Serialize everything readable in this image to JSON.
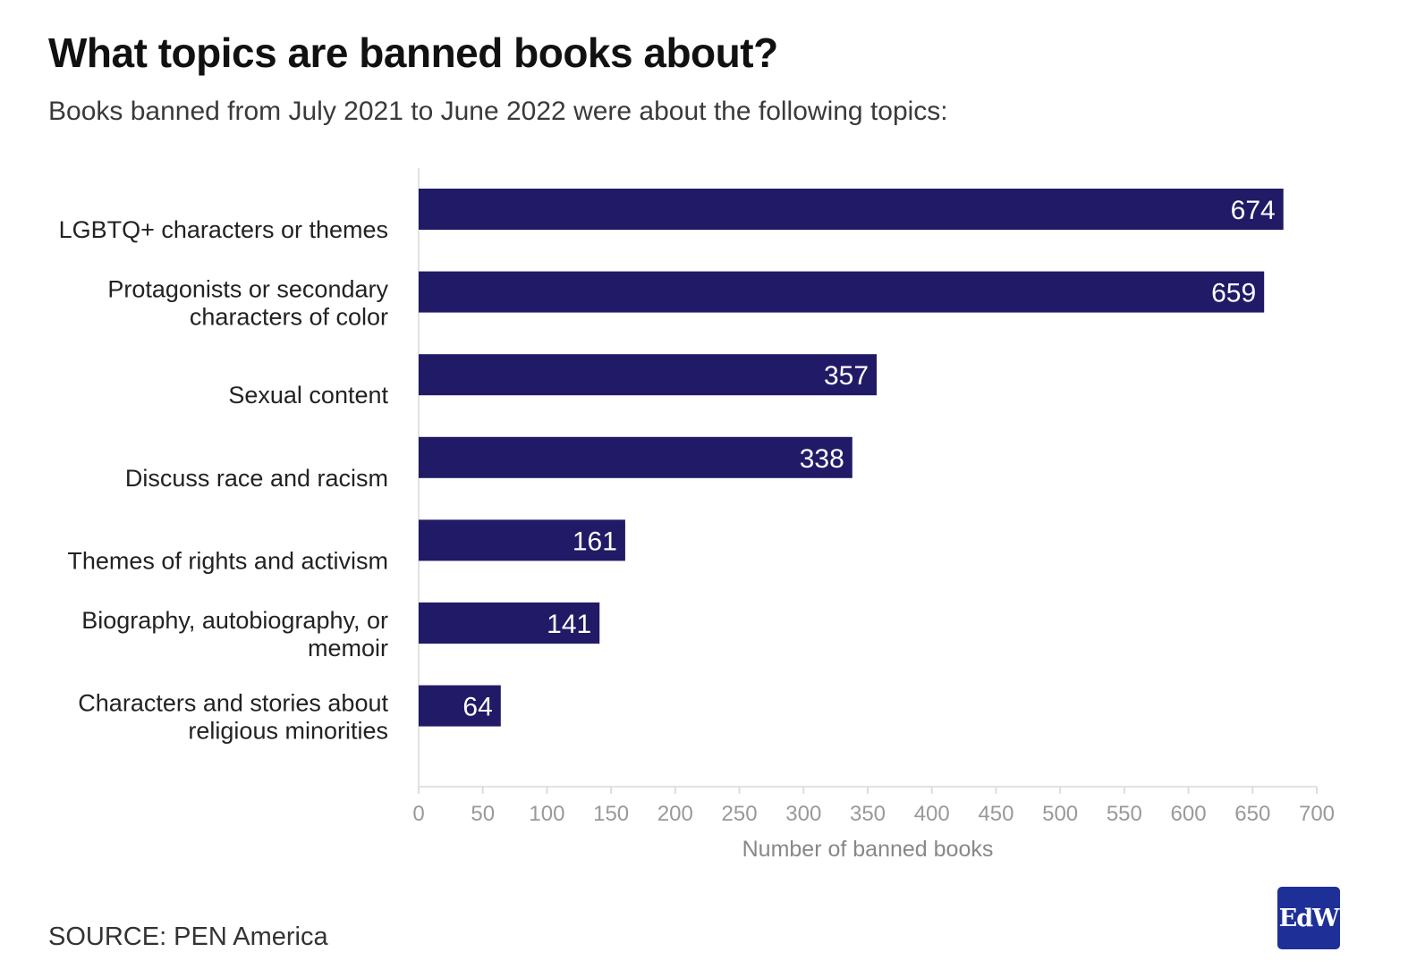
{
  "header": {
    "title": "What topics are banned books about?",
    "subtitle": "Books banned from July 2021 to June 2022 were about the following topics:"
  },
  "footer": {
    "source": "SOURCE: PEN America",
    "logo_text": "EdW"
  },
  "colors": {
    "bar": "#211a66",
    "logo_bg": "#1e2f97",
    "axis_text": "#999999"
  },
  "chart_data": {
    "type": "bar",
    "orientation": "horizontal",
    "title": "What topics are banned books about?",
    "subtitle": "Books banned from July 2021 to June 2022 were about the following topics:",
    "categories": [
      [
        "LGBTQ+ characters or themes"
      ],
      [
        "Protagonists or secondary",
        "characters of color"
      ],
      [
        "Sexual content"
      ],
      [
        "Discuss race and racism"
      ],
      [
        "Themes of rights and activism"
      ],
      [
        "Biography, autobiography, or",
        "memoir"
      ],
      [
        "Characters and stories about",
        "religious minorities"
      ]
    ],
    "values": [
      674,
      659,
      357,
      338,
      161,
      141,
      64
    ],
    "xlabel": "Number of banned books",
    "ylabel": "",
    "xlim": [
      0,
      700
    ],
    "xticks": [
      0,
      50,
      100,
      150,
      200,
      250,
      300,
      350,
      400,
      450,
      500,
      550,
      600,
      650,
      700
    ],
    "grid": false,
    "data_labels": true
  }
}
